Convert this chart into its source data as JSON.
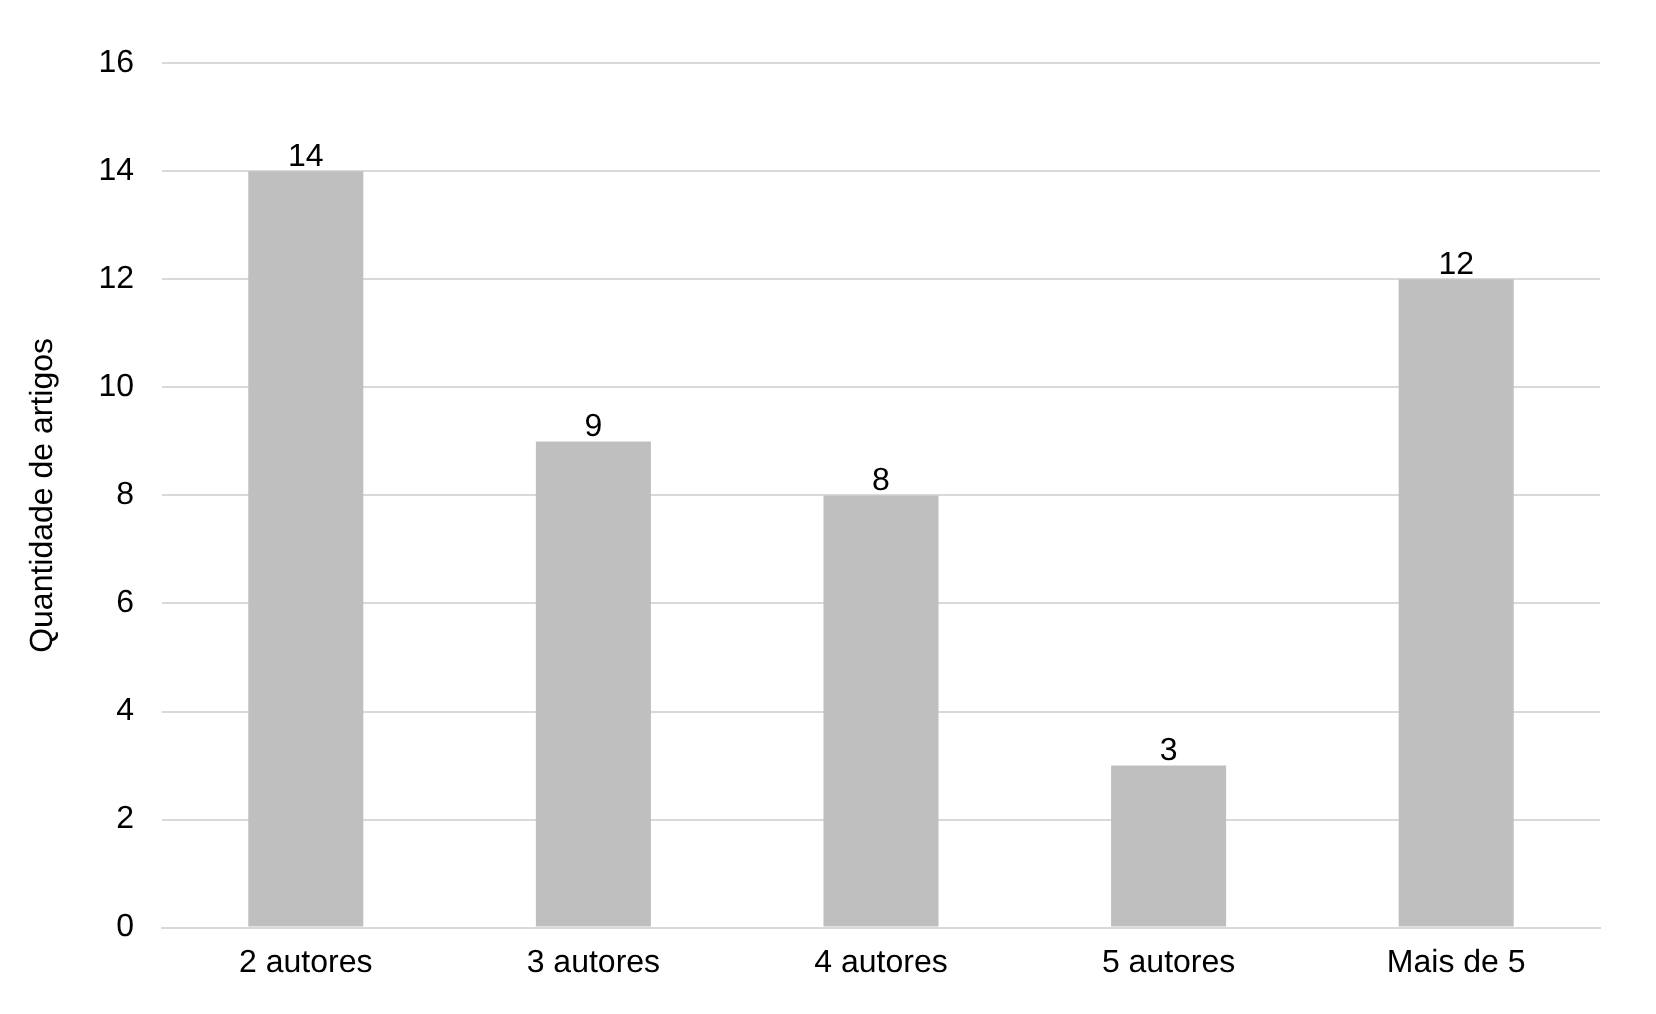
{
  "chart_data": {
    "type": "bar",
    "ylabel": "Quantidade de artigos",
    "categories": [
      "2 autores",
      "3 autores",
      "4 autores",
      "5 autores",
      "Mais de 5"
    ],
    "values": [
      14,
      9,
      8,
      3,
      12
    ],
    "color": "#bfbfbf",
    "ylim": [
      0,
      16
    ],
    "yticks": [
      0,
      2,
      4,
      6,
      8,
      10,
      12,
      14,
      16
    ],
    "grid": "y",
    "data_labels": true,
    "legend": false
  }
}
